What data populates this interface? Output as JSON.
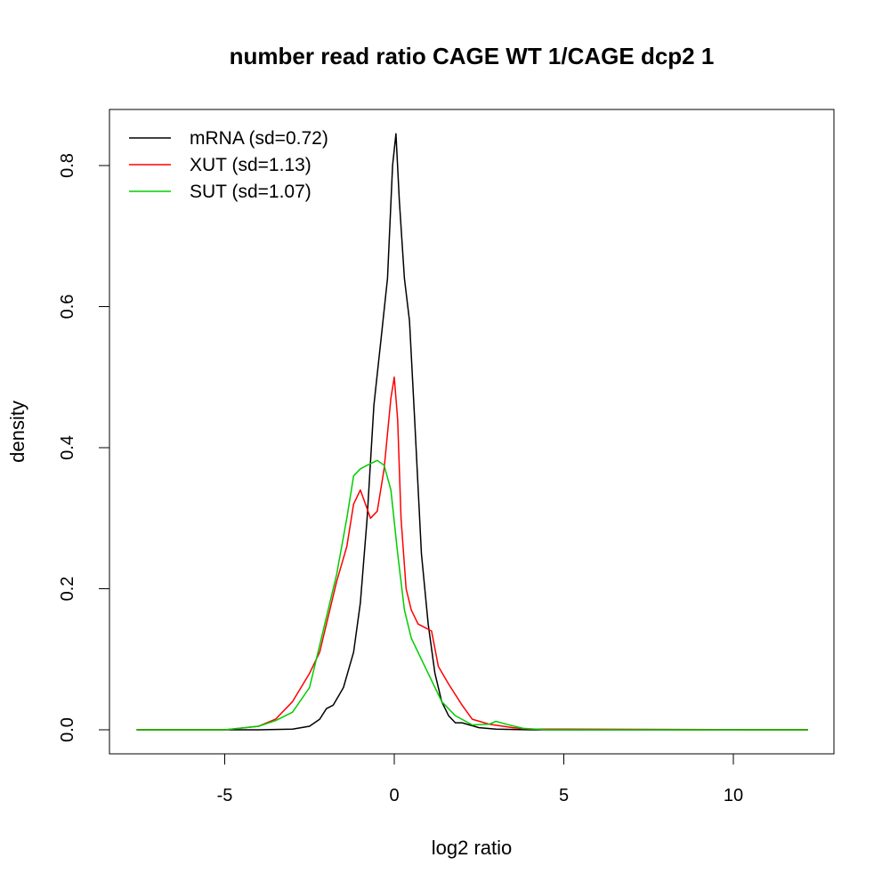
{
  "chart_data": {
    "type": "line",
    "title": "number read ratio CAGE WT 1/CAGE dcp2 1",
    "xlabel": "log2 ratio",
    "ylabel": "density",
    "xlim": [
      -8.4,
      12.9
    ],
    "ylim": [
      -0.034,
      0.88
    ],
    "xticks": [
      -5,
      0,
      5,
      10
    ],
    "xtick_labels": [
      "-5",
      "0",
      "5",
      "10"
    ],
    "yticks": [
      0.0,
      0.2,
      0.4,
      0.6,
      0.8
    ],
    "ytick_labels": [
      "0.0",
      "0.2",
      "0.4",
      "0.6",
      "0.8"
    ],
    "grid": false,
    "legend_position": "top-left",
    "series": [
      {
        "name": "mRNA (sd=0.72)",
        "color": "#000000",
        "x": [
          -7.6,
          -4,
          -3,
          -2.5,
          -2.2,
          -2.0,
          -1.8,
          -1.5,
          -1.2,
          -1.0,
          -0.8,
          -0.6,
          -0.4,
          -0.2,
          -0.05,
          0.05,
          0.15,
          0.3,
          0.45,
          0.6,
          0.8,
          1.0,
          1.2,
          1.4,
          1.6,
          1.8,
          2.0,
          2.5,
          3,
          4,
          12.2
        ],
        "y": [
          0,
          0,
          0.001,
          0.005,
          0.015,
          0.03,
          0.035,
          0.06,
          0.11,
          0.18,
          0.3,
          0.46,
          0.55,
          0.64,
          0.8,
          0.845,
          0.75,
          0.64,
          0.58,
          0.44,
          0.25,
          0.15,
          0.08,
          0.04,
          0.02,
          0.01,
          0.01,
          0.003,
          0.001,
          0,
          0
        ]
      },
      {
        "name": "XUT (sd=1.13)",
        "color": "#ff0000",
        "x": [
          -7.6,
          -5,
          -4,
          -3.5,
          -3,
          -2.5,
          -2.2,
          -2,
          -1.7,
          -1.4,
          -1.2,
          -1.0,
          -0.85,
          -0.7,
          -0.5,
          -0.3,
          -0.1,
          0,
          0.1,
          0.2,
          0.35,
          0.5,
          0.7,
          0.9,
          1.1,
          1.3,
          1.6,
          2,
          2.3,
          2.8,
          3.5,
          4,
          12.2
        ],
        "y": [
          0,
          0,
          0.005,
          0.015,
          0.04,
          0.08,
          0.11,
          0.15,
          0.21,
          0.26,
          0.32,
          0.34,
          0.32,
          0.3,
          0.31,
          0.37,
          0.47,
          0.5,
          0.44,
          0.3,
          0.2,
          0.17,
          0.15,
          0.145,
          0.14,
          0.09,
          0.065,
          0.035,
          0.015,
          0.008,
          0.003,
          0.001,
          0
        ]
      },
      {
        "name": "SUT (sd=1.07)",
        "color": "#00cd00",
        "x": [
          -7.6,
          -5,
          -4,
          -3.5,
          -3,
          -2.5,
          -2.2,
          -2,
          -1.7,
          -1.4,
          -1.2,
          -1.0,
          -0.8,
          -0.5,
          -0.3,
          -0.1,
          0.1,
          0.3,
          0.5,
          0.8,
          1.1,
          1.4,
          1.8,
          2.3,
          2.8,
          3.0,
          3.3,
          3.8,
          4.5,
          12.2
        ],
        "y": [
          0,
          0,
          0.005,
          0.013,
          0.025,
          0.06,
          0.12,
          0.16,
          0.22,
          0.3,
          0.36,
          0.37,
          0.375,
          0.382,
          0.375,
          0.34,
          0.25,
          0.17,
          0.13,
          0.1,
          0.07,
          0.04,
          0.02,
          0.007,
          0.008,
          0.012,
          0.008,
          0.002,
          0,
          0
        ]
      }
    ]
  }
}
